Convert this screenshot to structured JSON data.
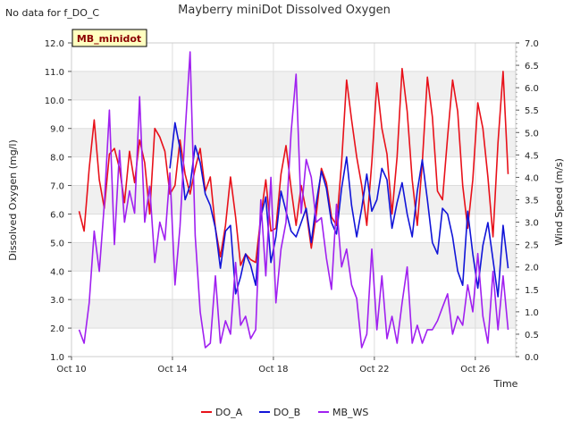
{
  "notice": "No data for f_DO_C",
  "chart_data": {
    "type": "line",
    "title": "Mayberry miniDot Dissolved Oxygen",
    "site_badge": "MB_minidot",
    "xlabel": "Time",
    "ylabel_left": "Dissolved Oxygen (mg/l)",
    "ylabel_right": "Wind Speed (m/s)",
    "x_range_days": [
      10,
      27.6
    ],
    "x_ticks": [
      {
        "day": 10,
        "label": "Oct 10"
      },
      {
        "day": 14,
        "label": "Oct 14"
      },
      {
        "day": 18,
        "label": "Oct 18"
      },
      {
        "day": 22,
        "label": "Oct 22"
      },
      {
        "day": 26,
        "label": "Oct 26"
      }
    ],
    "ylim_left": [
      1.0,
      12.0
    ],
    "yticks_left": [
      "1.0",
      "2.0",
      "3.0",
      "4.0",
      "5.0",
      "6.0",
      "7.0",
      "8.0",
      "9.0",
      "10.0",
      "11.0",
      "12.0"
    ],
    "ylim_right": [
      0.0,
      7.0
    ],
    "yticks_right": [
      "0.0",
      "0.5",
      "1.0",
      "1.5",
      "2.0",
      "2.5",
      "3.0",
      "3.5",
      "4.0",
      "4.5",
      "5.0",
      "5.5",
      "6.0",
      "6.5",
      "7.0"
    ],
    "grid": true,
    "legend_position": "bottom",
    "series": [
      {
        "name": "DO_A",
        "axis": "left",
        "color": "#e8111a",
        "x": [
          10.3,
          10.5,
          10.7,
          10.9,
          11.1,
          11.3,
          11.5,
          11.7,
          11.9,
          12.1,
          12.3,
          12.5,
          12.7,
          12.9,
          13.1,
          13.3,
          13.5,
          13.7,
          13.9,
          14.1,
          14.3,
          14.5,
          14.7,
          14.9,
          15.1,
          15.3,
          15.5,
          15.7,
          15.9,
          16.1,
          16.3,
          16.5,
          16.7,
          16.9,
          17.1,
          17.3,
          17.5,
          17.7,
          17.9,
          18.1,
          18.3,
          18.5,
          18.7,
          18.9,
          19.1,
          19.3,
          19.5,
          19.7,
          19.9,
          20.1,
          20.3,
          20.5,
          20.7,
          20.9,
          21.1,
          21.3,
          21.5,
          21.7,
          21.9,
          22.1,
          22.3,
          22.5,
          22.7,
          22.9,
          23.1,
          23.3,
          23.5,
          23.7,
          23.9,
          24.1,
          24.3,
          24.5,
          24.7,
          24.9,
          25.1,
          25.3,
          25.5,
          25.7,
          25.9,
          26.1,
          26.3,
          26.5,
          26.7,
          26.9,
          27.1,
          27.3
        ],
        "y": [
          6.1,
          5.4,
          7.6,
          9.3,
          7.2,
          6.2,
          8.1,
          8.3,
          7.6,
          6.4,
          8.2,
          7.1,
          8.6,
          7.8,
          6.0,
          9.0,
          8.7,
          8.2,
          6.7,
          7.0,
          8.6,
          7.4,
          6.7,
          7.6,
          8.3,
          6.8,
          7.3,
          5.5,
          4.5,
          5.6,
          7.3,
          5.9,
          4.2,
          4.6,
          4.4,
          4.3,
          5.9,
          7.2,
          5.4,
          5.5,
          7.4,
          8.4,
          6.9,
          5.6,
          7.0,
          6.1,
          4.8,
          6.0,
          7.6,
          7.1,
          5.9,
          5.6,
          7.8,
          10.7,
          9.3,
          8.0,
          7.0,
          5.6,
          7.8,
          10.6,
          9.0,
          8.1,
          6.0,
          8.0,
          11.1,
          9.6,
          7.2,
          5.6,
          7.8,
          10.8,
          9.4,
          6.8,
          6.5,
          8.7,
          10.7,
          9.6,
          7.0,
          5.5,
          7.2,
          9.9,
          9.0,
          7.3,
          5.2,
          8.5,
          11.0,
          7.4
        ]
      },
      {
        "name": "DO_B",
        "axis": "left",
        "color": "#1114d8",
        "x": [
          13.9,
          14.1,
          14.3,
          14.5,
          14.7,
          14.9,
          15.1,
          15.3,
          15.5,
          15.7,
          15.9,
          16.1,
          16.3,
          16.5,
          16.7,
          16.9,
          17.1,
          17.3,
          17.5,
          17.7,
          17.9,
          18.1,
          18.3,
          18.5,
          18.7,
          18.9,
          19.1,
          19.3,
          19.5,
          19.7,
          19.9,
          20.1,
          20.3,
          20.5,
          20.7,
          20.9,
          21.1,
          21.3,
          21.5,
          21.7,
          21.9,
          22.1,
          22.3,
          22.5,
          22.7,
          22.9,
          23.1,
          23.3,
          23.5,
          23.7,
          23.9,
          24.1,
          24.3,
          24.5,
          24.7,
          24.9,
          25.1,
          25.3,
          25.5,
          25.7,
          25.9,
          26.1,
          26.3,
          26.5,
          26.7,
          26.9,
          27.1,
          27.3
        ],
        "y": [
          7.6,
          9.2,
          8.3,
          6.5,
          7.0,
          8.4,
          7.8,
          6.7,
          6.3,
          5.5,
          4.1,
          5.4,
          5.6,
          3.2,
          3.8,
          4.6,
          4.2,
          3.5,
          5.9,
          6.6,
          4.3,
          5.2,
          6.8,
          6.1,
          5.4,
          5.2,
          5.7,
          6.2,
          5.0,
          6.4,
          7.5,
          6.9,
          5.7,
          5.3,
          6.9,
          8.0,
          6.3,
          5.2,
          6.2,
          7.4,
          6.1,
          6.5,
          7.6,
          7.2,
          5.5,
          6.4,
          7.1,
          6.0,
          5.2,
          6.8,
          7.9,
          6.5,
          5.0,
          4.6,
          6.2,
          6.0,
          5.2,
          4.0,
          3.5,
          6.1,
          4.6,
          3.4,
          4.9,
          5.7,
          4.4,
          3.1,
          5.6,
          4.1
        ]
      },
      {
        "name": "MB_WS",
        "axis": "right",
        "color": "#a020f0",
        "x": [
          10.3,
          10.5,
          10.7,
          10.9,
          11.1,
          11.3,
          11.5,
          11.7,
          11.9,
          12.1,
          12.3,
          12.5,
          12.7,
          12.9,
          13.1,
          13.3,
          13.5,
          13.7,
          13.9,
          14.1,
          14.3,
          14.5,
          14.7,
          14.9,
          15.1,
          15.3,
          15.5,
          15.7,
          15.9,
          16.1,
          16.3,
          16.5,
          16.7,
          16.9,
          17.1,
          17.3,
          17.5,
          17.7,
          17.9,
          18.1,
          18.3,
          18.5,
          18.7,
          18.9,
          19.1,
          19.3,
          19.5,
          19.7,
          19.9,
          20.1,
          20.3,
          20.5,
          20.7,
          20.9,
          21.1,
          21.3,
          21.5,
          21.7,
          21.9,
          22.1,
          22.3,
          22.5,
          22.7,
          22.9,
          23.1,
          23.3,
          23.5,
          23.7,
          23.9,
          24.1,
          24.3,
          24.5,
          24.7,
          24.9,
          25.1,
          25.3,
          25.5,
          25.7,
          25.9,
          26.1,
          26.3,
          26.5,
          26.7,
          26.9,
          27.1,
          27.3
        ],
        "y": [
          0.6,
          0.3,
          1.2,
          2.8,
          1.9,
          3.4,
          5.5,
          2.5,
          4.6,
          3.0,
          3.7,
          3.2,
          5.8,
          3.0,
          3.8,
          2.1,
          3.0,
          2.6,
          4.1,
          1.6,
          2.9,
          5.0,
          6.8,
          2.7,
          1.0,
          0.2,
          0.3,
          1.8,
          0.3,
          0.8,
          0.5,
          2.1,
          0.7,
          0.9,
          0.4,
          0.6,
          3.5,
          1.8,
          4.0,
          1.2,
          2.4,
          3.0,
          5.0,
          6.3,
          3.2,
          4.4,
          4.0,
          3.0,
          3.1,
          2.2,
          1.5,
          3.4,
          2.0,
          2.4,
          1.6,
          1.3,
          0.2,
          0.5,
          2.4,
          0.6,
          1.8,
          0.4,
          0.9,
          0.3,
          1.2,
          2.0,
          0.3,
          0.7,
          0.3,
          0.6,
          0.6,
          0.8,
          1.1,
          1.4,
          0.5,
          0.9,
          0.7,
          1.6,
          1.0,
          2.3,
          0.9,
          0.3,
          1.9,
          0.6,
          1.8,
          0.6
        ]
      }
    ]
  }
}
